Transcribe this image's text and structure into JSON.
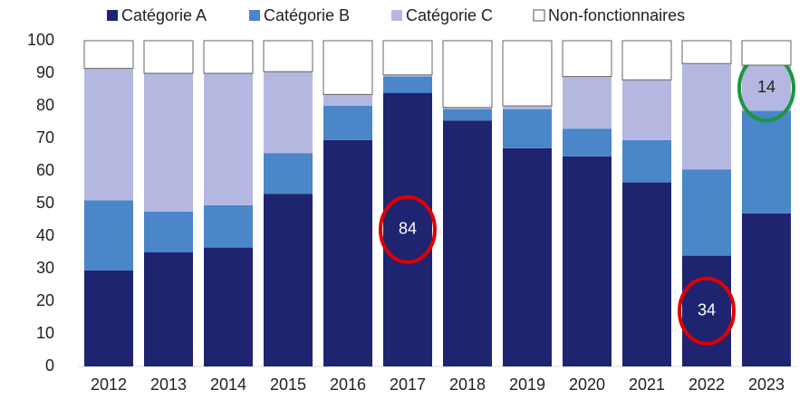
{
  "chart_data": {
    "type": "stacked_bar",
    "categories": [
      "2012",
      "2013",
      "2014",
      "2015",
      "2016",
      "2017",
      "2018",
      "2019",
      "2020",
      "2021",
      "2022",
      "2023"
    ],
    "series": [
      {
        "name": "Catégorie A",
        "color": "#1f2470",
        "values": [
          29.5,
          35,
          36.5,
          53,
          69.5,
          84,
          75.5,
          67,
          64.5,
          56.5,
          34,
          47
        ]
      },
      {
        "name": "Catégorie B",
        "color": "#4a86c8",
        "values": [
          21.5,
          12.5,
          13,
          12.5,
          10.5,
          5,
          3.5,
          12,
          8.5,
          13,
          26.5,
          31.5
        ]
      },
      {
        "name": "Catégorie C",
        "color": "#b4b8e0",
        "values": [
          40.5,
          42.5,
          40.5,
          25,
          3.5,
          0.5,
          0.5,
          1,
          16,
          18.5,
          32.5,
          14
        ]
      },
      {
        "name": "Non-fonctionnaires",
        "color": "#ffffff",
        "values": [
          8.5,
          10,
          10,
          9.5,
          16.5,
          10.5,
          20.5,
          20,
          11,
          12,
          7,
          7.5
        ]
      }
    ],
    "ylim": [
      0,
      100
    ],
    "yticks": [
      0,
      10,
      20,
      30,
      40,
      50,
      60,
      70,
      80,
      90,
      100
    ],
    "grid": false,
    "legend": "top"
  }
}
